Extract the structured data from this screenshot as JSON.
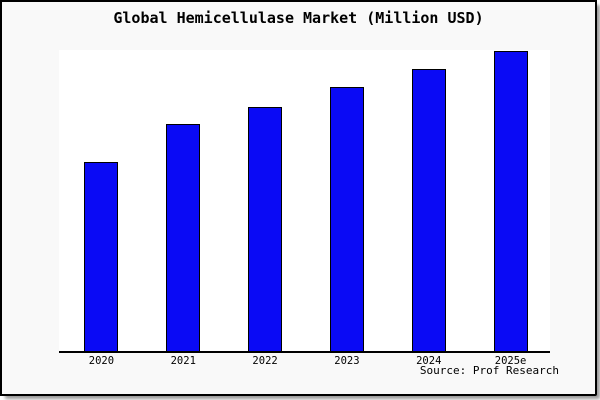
{
  "window": {
    "background_color": "#f9f9f9",
    "plot_background_color": "#ffffff",
    "border_color": "#000000",
    "shadow_color": "#9a9a9a"
  },
  "chart_data": {
    "type": "bar",
    "title": "Global Hemicellulase Market (Million USD)",
    "categories": [
      "2020",
      "2021",
      "2022",
      "2023",
      "2024",
      "2025e"
    ],
    "values_pct_of_max": [
      63,
      75.5,
      81.5,
      88,
      94,
      100
    ],
    "xlabel": "",
    "ylabel": "",
    "y_axis_tick_labels_visible": false,
    "grid": false,
    "legend": "none",
    "bar_color": "#0a0af5",
    "bar_border_color": "#000000",
    "source_note": "Source: Prof Research"
  }
}
